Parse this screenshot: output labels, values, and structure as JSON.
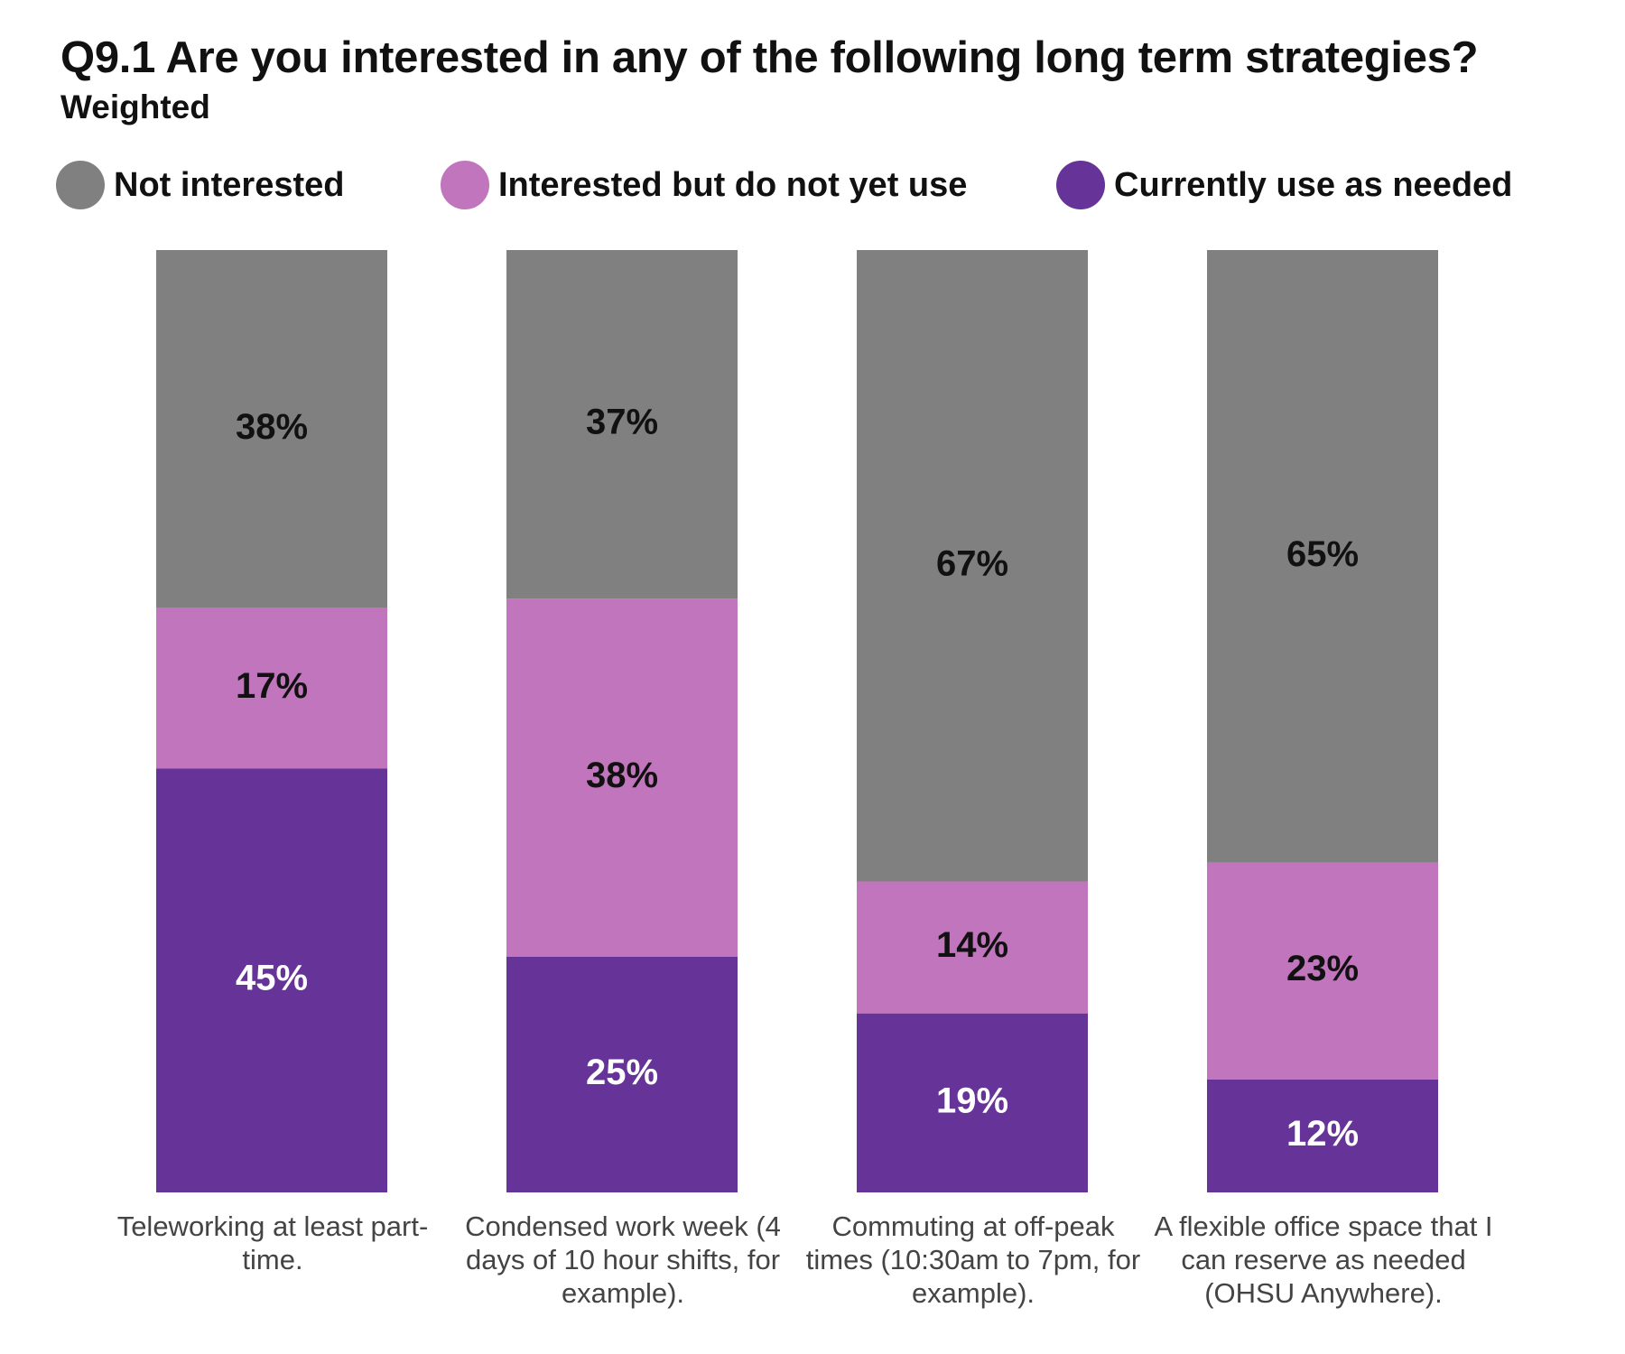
{
  "chart_data": {
    "type": "bar",
    "stacked": true,
    "title": "Q9.1 Are you interested in any of the following long term strategies?",
    "subtitle": "Weighted",
    "categories": [
      "Teleworking at least part-time.",
      "Condensed work week (4 days of 10 hour shifts, for example).",
      "Commuting at off-peak times (10:30am to 7pm, for example).",
      "A flexible office space that I can reserve as needed (OHSU Anywhere)."
    ],
    "series": [
      {
        "name": "Currently use as needed",
        "values": [
          45,
          25,
          19,
          12
        ],
        "color": "#663399",
        "label_color": "#ffffff"
      },
      {
        "name": "Interested but do not yet use",
        "values": [
          17,
          38,
          14,
          23
        ],
        "color": "#C175BC",
        "label_color": "#111111"
      },
      {
        "name": "Not interested",
        "values": [
          38,
          37,
          67,
          65
        ],
        "color": "#808080",
        "label_color": "#111111"
      }
    ],
    "value_suffix": "%",
    "legend_order": [
      "Not interested",
      "Interested but do not yet use",
      "Currently use as needed"
    ],
    "legend_position": "top",
    "ylim": [
      0,
      100
    ],
    "grid": false
  }
}
